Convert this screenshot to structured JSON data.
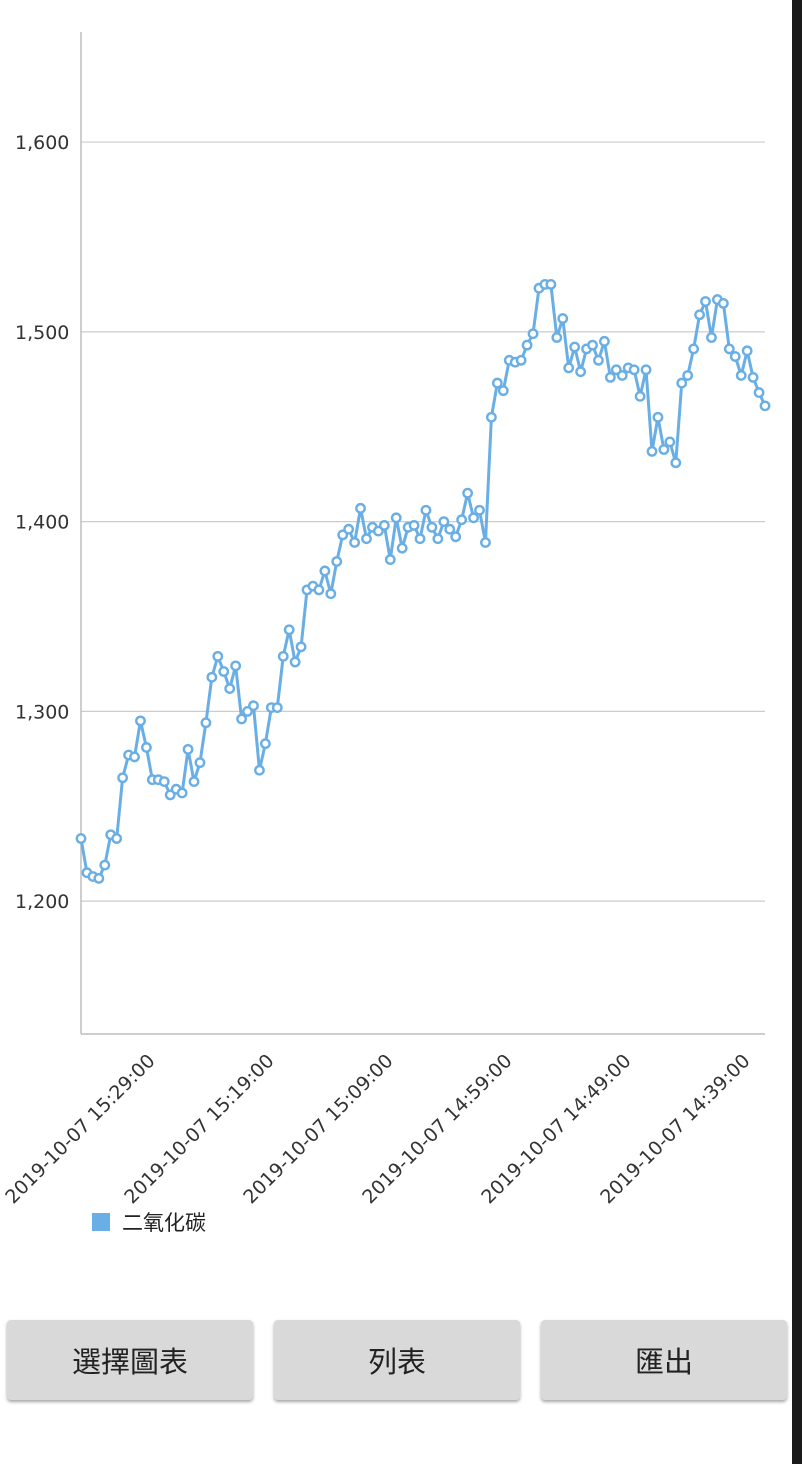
{
  "chart_data": {
    "type": "line",
    "series": [
      {
        "name": "二氧化碳",
        "values": [
          1233,
          1215,
          1213,
          1212,
          1219,
          1235,
          1233,
          1265,
          1277,
          1276,
          1295,
          1281,
          1264,
          1264,
          1263,
          1256,
          1259,
          1257,
          1280,
          1263,
          1273,
          1294,
          1318,
          1329,
          1321,
          1312,
          1324,
          1296,
          1300,
          1303,
          1269,
          1283,
          1302,
          1302,
          1329,
          1343,
          1326,
          1334,
          1364,
          1366,
          1364,
          1374,
          1362,
          1379,
          1393,
          1396,
          1389,
          1407,
          1391,
          1397,
          1395,
          1398,
          1380,
          1402,
          1386,
          1397,
          1398,
          1391,
          1406,
          1397,
          1391,
          1400,
          1396,
          1392,
          1401,
          1415,
          1402,
          1406,
          1389,
          1455,
          1473,
          1469,
          1485,
          1484,
          1485,
          1493,
          1499,
          1523,
          1525,
          1525,
          1497,
          1507,
          1481,
          1492,
          1479,
          1491,
          1493,
          1485,
          1495,
          1476,
          1480,
          1477,
          1481,
          1480,
          1466,
          1480,
          1437,
          1455,
          1438,
          1442,
          1431,
          1473,
          1477,
          1491,
          1509,
          1516,
          1497,
          1517,
          1515,
          1491,
          1487,
          1477,
          1490,
          1476,
          1468,
          1461
        ]
      }
    ],
    "x_tick_labels": [
      "2019-10-07 15:29:00",
      "2019-10-07 15:19:00",
      "2019-10-07 15:09:00",
      "2019-10-07 14:59:00",
      "2019-10-07 14:49:00",
      "2019-10-07 14:39:00"
    ],
    "y_ticks": [
      1200,
      1300,
      1400,
      1500,
      1600
    ],
    "y_tick_labels": [
      "1,200",
      "1,300",
      "1,400",
      "1,500",
      "1,600"
    ],
    "ylim": [
      1130,
      1658
    ],
    "grid": "horizontal",
    "legend": "bottom-left",
    "colors": {
      "line": "#69aee4",
      "point_fill": "#ffffff",
      "grid": "#cccccc"
    }
  },
  "legend": {
    "label": "二氧化碳"
  },
  "buttons": {
    "select_chart": "選擇圖表",
    "list": "列表",
    "export": "匯出"
  }
}
